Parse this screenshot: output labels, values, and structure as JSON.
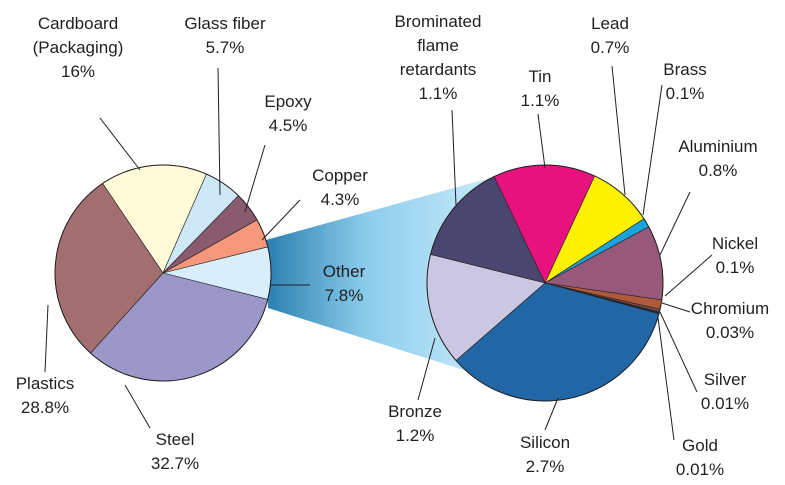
{
  "chart_data": [
    {
      "type": "pie",
      "categories": [
        "Cardboard (Packaging)",
        "Glass fiber",
        "Epoxy",
        "Copper",
        "Other",
        "Steel",
        "Plastics"
      ],
      "values": [
        16,
        5.7,
        4.5,
        4.3,
        7.8,
        32.7,
        28.8
      ],
      "value_labels": [
        "16%",
        "5.7%",
        "4.5%",
        "4.3%",
        "7.8%",
        "32.7%",
        "28.8%"
      ],
      "colors": [
        "#fffbd8",
        "#cfe8f8",
        "#8a5a6e",
        "#f4977a",
        "#d9eefa",
        "#9b98c9",
        "#a36e70"
      ]
    },
    {
      "type": "pie",
      "categories": [
        "Brominated flame retardants",
        "Tin",
        "Lead",
        "Brass",
        "Aluminium",
        "Nickel",
        "Chromium",
        "Silver",
        "Gold",
        "Silicon",
        "Bronze"
      ],
      "values": [
        1.1,
        1.1,
        0.7,
        0.1,
        0.8,
        0.1,
        0.03,
        0.01,
        0.01,
        2.7,
        1.2
      ],
      "value_labels": [
        "1.1%",
        "1.1%",
        "0.7%",
        "0.1%",
        "0.8%",
        "0.1%",
        "0.03%",
        "0.01%",
        "0.01%",
        "2.7%",
        "1.2%"
      ],
      "colors": [
        "#4a4670",
        "#e8127f",
        "#fff200",
        "#1ba3dd",
        "#97587a",
        "#b05a3c",
        "#7a4a4a",
        "#3b3f6e",
        "#1f3e7a",
        "#2166a5",
        "#cbc6e2"
      ]
    }
  ]
}
